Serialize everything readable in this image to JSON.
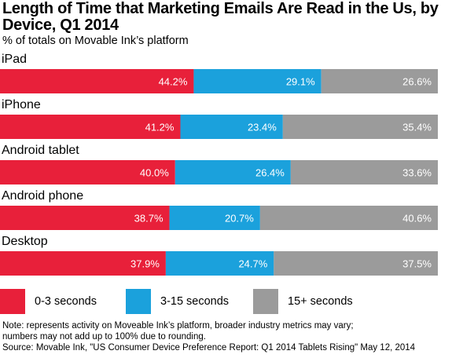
{
  "header": {
    "title": "Length of Time that Marketing Emails Are Read in the Us, by Device, Q1 2014",
    "subtitle": "% of totals on Movable Ink’s platform"
  },
  "legend": [
    {
      "label": "0-3 seconds",
      "color": "#e8203a"
    },
    {
      "label": "3-15 seconds",
      "color": "#1ba1dc"
    },
    {
      "label": "15+ seconds",
      "color": "#9b9b9b"
    }
  ],
  "footer": {
    "note_line1": "Note: represents activity on Moveable Ink’s platform, broader industry metrics may vary;",
    "note_line2": "numbers may not add up to 100% due to rounding.",
    "source": "Source: Movable Ink, \"US Consumer Device Preference Report: Q1 2014 Tablets Rising\" May 12, 2014"
  },
  "chart_data": {
    "type": "bar",
    "orientation": "horizontal",
    "stacked": true,
    "categories": [
      "iPad",
      "iPhone",
      "Android tablet",
      "Android phone",
      "Desktop"
    ],
    "series": [
      {
        "name": "0-3 seconds",
        "color": "#e8203a",
        "values": [
          44.2,
          41.2,
          40.0,
          38.7,
          37.9
        ],
        "labels": [
          "44.2%",
          "41.2%",
          "40.0%",
          "38.7%",
          "37.9%"
        ]
      },
      {
        "name": "3-15 seconds",
        "color": "#1ba1dc",
        "values": [
          29.1,
          23.4,
          26.4,
          20.7,
          24.7
        ],
        "labels": [
          "29.1%",
          "23.4%",
          "26.4%",
          "20.7%",
          "24.7%"
        ]
      },
      {
        "name": "15+ seconds",
        "color": "#9b9b9b",
        "values": [
          26.6,
          35.4,
          33.6,
          40.6,
          37.5
        ],
        "labels": [
          "26.6%",
          "35.4%",
          "33.6%",
          "40.6%",
          "37.5%"
        ]
      }
    ],
    "title": "Length of Time that Marketing Emails Are Read in the Us, by Device, Q1 2014",
    "subtitle": "% of totals on Movable Ink’s platform",
    "xlabel": "",
    "ylabel": "",
    "legend_position": "bottom",
    "grid": false
  }
}
